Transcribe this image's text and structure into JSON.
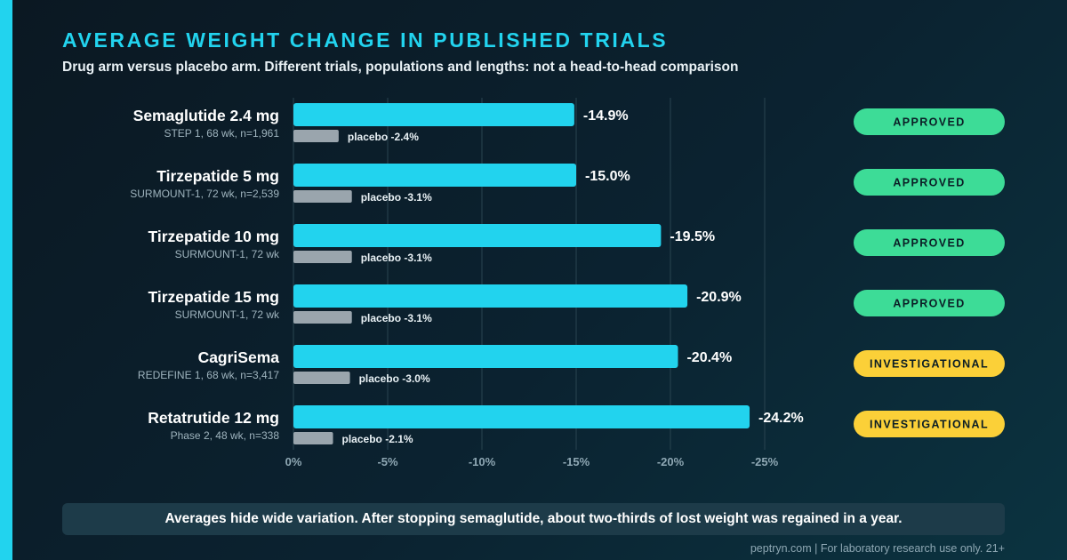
{
  "colors": {
    "accent": "#22d3ee",
    "drug_bar": "#22d3ee",
    "placebo_bar": "#9aa5ad",
    "approved": "#3ddc97",
    "investigational": "#fbd038",
    "grid": "#2a4450",
    "tick_label": "#8fa8b4"
  },
  "header": {
    "title": "AVERAGE WEIGHT CHANGE IN PUBLISHED TRIALS",
    "subtitle": "Drug arm versus placebo arm. Different trials, populations and lengths: not a head-to-head comparison"
  },
  "chart_data": {
    "type": "bar",
    "orientation": "horizontal",
    "xlim": [
      0,
      -25
    ],
    "x_ticks": [
      0,
      -5,
      -10,
      -15,
      -20,
      -25
    ],
    "x_tick_labels": [
      "0%",
      "-5%",
      "-10%",
      "-15%",
      "-20%",
      "-25%"
    ],
    "grid": true,
    "rows": [
      {
        "drug": "Semaglutide 2.4 mg",
        "trial": "STEP 1, 68 wk, n=1,961",
        "drug_value": -14.9,
        "drug_label": "-14.9%",
        "placebo_value": -2.4,
        "placebo_label": "placebo -2.4%",
        "status": "APPROVED"
      },
      {
        "drug": "Tirzepatide 5 mg",
        "trial": "SURMOUNT-1, 72 wk, n=2,539",
        "drug_value": -15.0,
        "drug_label": "-15.0%",
        "placebo_value": -3.1,
        "placebo_label": "placebo -3.1%",
        "status": "APPROVED"
      },
      {
        "drug": "Tirzepatide 10 mg",
        "trial": "SURMOUNT-1, 72 wk",
        "drug_value": -19.5,
        "drug_label": "-19.5%",
        "placebo_value": -3.1,
        "placebo_label": "placebo -3.1%",
        "status": "APPROVED"
      },
      {
        "drug": "Tirzepatide 15 mg",
        "trial": "SURMOUNT-1, 72 wk",
        "drug_value": -20.9,
        "drug_label": "-20.9%",
        "placebo_value": -3.1,
        "placebo_label": "placebo -3.1%",
        "status": "APPROVED"
      },
      {
        "drug": "CagriSema",
        "trial": "REDEFINE 1, 68 wk, n=3,417",
        "drug_value": -20.4,
        "drug_label": "-20.4%",
        "placebo_value": -3.0,
        "placebo_label": "placebo -3.0%",
        "status": "INVESTIGATIONAL"
      },
      {
        "drug": "Retatrutide 12 mg",
        "trial": "Phase 2, 48 wk, n=338",
        "drug_value": -24.2,
        "drug_label": "-24.2%",
        "placebo_value": -2.1,
        "placebo_label": "placebo -2.1%",
        "status": "INVESTIGATIONAL"
      }
    ]
  },
  "footer": {
    "note": "Averages hide wide variation. After stopping semaglutide, about two-thirds of lost weight was regained in a year.",
    "credit": "peptryn.com | For laboratory research use only. 21+"
  }
}
